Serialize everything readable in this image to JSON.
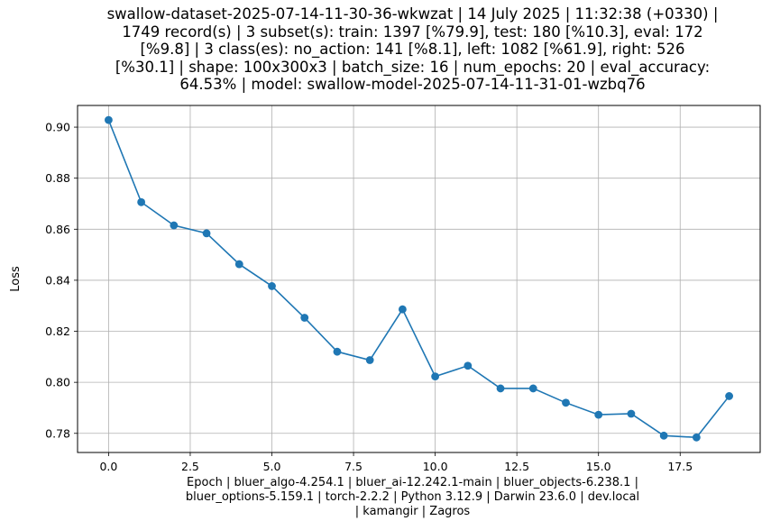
{
  "chart_data": {
    "type": "line",
    "title_lines": [
      "swallow-dataset-2025-07-14-11-30-36-wkwzat | 14 July 2025 | 11:32:38 (+0330) |",
      "1749 record(s) | 3 subset(s): train: 1397 [%79.9], test: 180 [%10.3], eval: 172",
      "[%9.8] | 3 class(es): no_action: 141 [%8.1], left: 1082 [%61.9], right: 526",
      "[%30.1] | shape: 100x300x3 | batch_size: 16 | num_epochs: 20 | eval_accuracy:",
      "64.53% | model: swallow-model-2025-07-14-11-31-01-wzbq76"
    ],
    "xlabel_lines": [
      "Epoch | bluer_algo-4.254.1 | bluer_ai-12.242.1-main | bluer_objects-6.238.1 |",
      "bluer_options-5.159.1 | torch-2.2.2 | Python 3.12.9 | Darwin 23.6.0 | dev.local",
      "| kamangir | Zagros"
    ],
    "ylabel": "Loss",
    "xlim": [
      -0.95,
      19.95
    ],
    "ylim": [
      0.7725,
      0.9085
    ],
    "xticks": [
      0.0,
      2.5,
      5.0,
      7.5,
      10.0,
      12.5,
      15.0,
      17.5
    ],
    "xtick_labels": [
      "0.0",
      "2.5",
      "5.0",
      "7.5",
      "10.0",
      "12.5",
      "15.0",
      "17.5"
    ],
    "yticks": [
      0.78,
      0.8,
      0.82,
      0.84,
      0.86,
      0.88,
      0.9
    ],
    "ytick_labels": [
      "0.78",
      "0.80",
      "0.82",
      "0.84",
      "0.86",
      "0.88",
      "0.90"
    ],
    "grid": true,
    "series": [
      {
        "color": "#1f77b4",
        "x": [
          0,
          1,
          2,
          3,
          4,
          5,
          6,
          7,
          8,
          9,
          10,
          11,
          12,
          13,
          14,
          15,
          16,
          17,
          18,
          19
        ],
        "y": [
          0.9028,
          0.8706,
          0.8615,
          0.8584,
          0.8463,
          0.8377,
          0.8253,
          0.812,
          0.8087,
          0.8286,
          0.8023,
          0.8065,
          0.7976,
          0.7976,
          0.792,
          0.7873,
          0.7877,
          0.7791,
          0.7784,
          0.7946
        ]
      }
    ]
  }
}
